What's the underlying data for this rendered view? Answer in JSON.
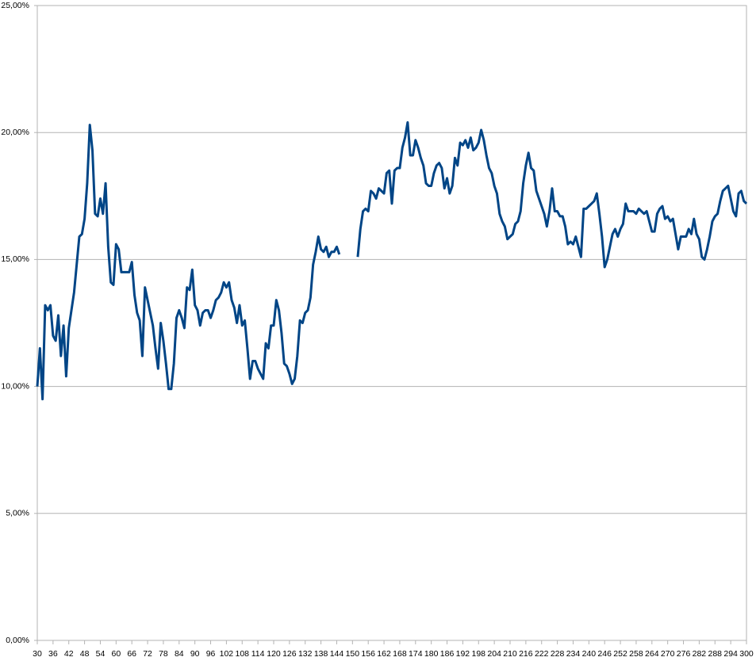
{
  "chart_data": {
    "type": "line",
    "x": [
      30,
      31,
      32,
      33,
      34,
      35,
      36,
      37,
      38,
      39,
      40,
      41,
      42,
      43,
      44,
      45,
      46,
      47,
      48,
      49,
      50,
      51,
      52,
      53,
      54,
      55,
      56,
      57,
      58,
      59,
      60,
      61,
      62,
      63,
      64,
      65,
      66,
      67,
      68,
      69,
      70,
      71,
      72,
      73,
      74,
      75,
      76,
      77,
      78,
      79,
      80,
      81,
      82,
      83,
      84,
      85,
      86,
      87,
      88,
      89,
      90,
      91,
      92,
      93,
      94,
      95,
      96,
      97,
      98,
      99,
      100,
      101,
      102,
      103,
      104,
      105,
      106,
      107,
      108,
      109,
      110,
      111,
      112,
      113,
      114,
      115,
      116,
      117,
      118,
      119,
      120,
      121,
      122,
      123,
      124,
      125,
      126,
      127,
      128,
      129,
      130,
      131,
      132,
      133,
      134,
      135,
      136,
      137,
      138,
      139,
      140,
      141,
      142,
      143,
      144,
      145,
      146,
      147,
      148,
      149,
      150,
      151,
      152,
      153,
      154,
      155,
      156,
      157,
      158,
      159,
      160,
      161,
      162,
      163,
      164,
      165,
      166,
      167,
      168,
      169,
      170,
      171,
      172,
      173,
      174,
      175,
      176,
      177,
      178,
      179,
      180,
      181,
      182,
      183,
      184,
      185,
      186,
      187,
      188,
      189,
      190,
      191,
      192,
      193,
      194,
      195,
      196,
      197,
      198,
      199,
      200,
      201,
      202,
      203,
      204,
      205,
      206,
      207,
      208,
      209,
      210,
      211,
      212,
      213,
      214,
      215,
      216,
      217,
      218,
      219,
      220,
      221,
      222,
      223,
      224,
      225,
      226,
      227,
      228,
      229,
      230,
      231,
      232,
      233,
      234,
      235,
      236,
      237,
      238,
      239,
      240,
      241,
      242,
      243,
      244,
      245,
      246,
      247,
      248,
      249,
      250,
      251,
      252,
      253,
      254,
      255,
      256,
      257,
      258,
      259,
      260,
      261,
      262,
      263,
      264,
      265,
      266,
      267,
      268,
      269,
      270,
      271,
      272,
      273,
      274,
      275,
      276,
      277,
      278,
      279,
      280,
      281,
      282,
      283,
      284,
      285,
      286,
      287,
      288,
      289,
      290,
      291,
      292,
      293,
      294,
      295,
      296,
      297,
      298,
      299,
      300
    ],
    "series": [
      {
        "color": "#004586",
        "values": [
          10.0,
          11.5,
          9.5,
          13.2,
          13.0,
          13.2,
          12.0,
          11.8,
          12.8,
          11.2,
          12.4,
          10.4,
          12.3,
          13.0,
          13.7,
          14.8,
          15.9,
          16.0,
          16.6,
          18.0,
          20.3,
          19.3,
          16.8,
          16.7,
          17.4,
          16.8,
          18.0,
          15.5,
          14.1,
          14.0,
          15.6,
          15.4,
          14.5,
          14.5,
          14.5,
          14.5,
          14.9,
          13.6,
          12.9,
          12.6,
          11.2,
          13.9,
          13.4,
          12.9,
          12.4,
          11.5,
          10.7,
          12.5,
          11.8,
          10.9,
          9.9,
          9.9,
          10.9,
          12.7,
          13.0,
          12.7,
          12.3,
          13.9,
          13.8,
          14.6,
          13.2,
          13.0,
          12.4,
          12.9,
          13.0,
          13.0,
          12.7,
          13.0,
          13.4,
          13.5,
          13.7,
          14.1,
          13.9,
          14.1,
          13.4,
          13.1,
          12.5,
          13.2,
          12.4,
          12.6,
          11.5,
          10.3,
          11.0,
          11.0,
          10.7,
          10.5,
          10.3,
          11.7,
          11.5,
          12.4,
          12.4,
          13.4,
          13.0,
          12.1,
          10.9,
          10.8,
          10.5,
          10.1,
          10.3,
          11.2,
          12.6,
          12.5,
          12.9,
          13.0,
          13.5,
          14.8,
          15.3,
          15.9,
          15.4,
          15.3,
          15.5,
          15.1,
          15.3,
          15.3,
          15.5,
          15.2,
          null,
          null,
          null,
          null,
          null,
          null,
          15.1,
          16.2,
          16.9,
          17.0,
          16.9,
          17.7,
          17.6,
          17.4,
          17.8,
          17.7,
          17.6,
          18.4,
          18.5,
          17.2,
          18.5,
          18.6,
          18.6,
          19.4,
          19.8,
          20.4,
          19.1,
          19.1,
          19.7,
          19.4,
          19.0,
          18.7,
          18.0,
          17.9,
          17.9,
          18.4,
          18.7,
          18.8,
          18.6,
          17.8,
          18.2,
          17.6,
          17.9,
          19.0,
          18.7,
          19.6,
          19.5,
          19.7,
          19.4,
          19.8,
          19.3,
          19.4,
          19.6,
          20.1,
          19.7,
          19.1,
          18.6,
          18.4,
          17.9,
          17.6,
          16.8,
          16.5,
          16.3,
          15.8,
          15.9,
          16.0,
          16.4,
          16.5,
          16.9,
          18.0,
          18.7,
          19.2,
          18.6,
          18.5,
          17.7,
          17.4,
          17.1,
          16.8,
          16.3,
          16.9,
          17.8,
          16.9,
          16.9,
          16.7,
          16.7,
          16.3,
          15.6,
          15.7,
          15.6,
          15.9,
          15.5,
          15.1,
          17.0,
          17.0,
          17.1,
          17.2,
          17.3,
          17.6,
          16.8,
          15.9,
          14.7,
          15.0,
          15.5,
          16.0,
          16.2,
          15.9,
          16.2,
          16.4,
          17.2,
          16.9,
          16.9,
          16.9,
          16.8,
          17.0,
          16.9,
          16.8,
          16.9,
          16.5,
          16.1,
          16.1,
          16.8,
          17.0,
          17.1,
          16.6,
          16.7,
          16.5,
          16.6,
          16.0,
          15.4,
          15.9,
          15.9,
          15.9,
          16.2,
          16.0,
          16.6,
          16.0,
          15.8,
          15.1,
          15.0,
          15.4,
          15.9,
          16.5,
          16.7,
          16.8,
          17.3,
          17.7,
          17.8,
          17.9,
          17.4,
          16.9,
          16.7,
          17.6,
          17.7,
          17.3,
          17.2
        ]
      }
    ],
    "xlim": [
      30,
      300
    ],
    "xticks": [
      30,
      36,
      42,
      48,
      54,
      60,
      66,
      72,
      78,
      84,
      90,
      96,
      102,
      108,
      114,
      120,
      126,
      132,
      138,
      144,
      150,
      156,
      162,
      168,
      174,
      180,
      186,
      192,
      198,
      204,
      210,
      216,
      222,
      228,
      234,
      240,
      246,
      252,
      258,
      264,
      270,
      276,
      282,
      288,
      294,
      300
    ],
    "ylim": [
      0,
      25
    ],
    "yticks": [
      {
        "value": 0,
        "label": "0,00%"
      },
      {
        "value": 5,
        "label": "5,00%"
      },
      {
        "value": 10,
        "label": "10,00%"
      },
      {
        "value": 15,
        "label": "15,00%"
      },
      {
        "value": 20,
        "label": "20,00%"
      },
      {
        "value": 25,
        "label": "25,00%"
      }
    ],
    "grid": true
  }
}
